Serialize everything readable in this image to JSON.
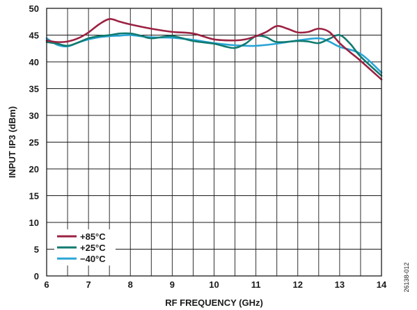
{
  "chart_data": {
    "type": "line",
    "title": "",
    "xlabel": "RF FREQUENCY (GHz)",
    "ylabel": "INPUT IP3 (dBm)",
    "xlim": [
      6,
      14
    ],
    "ylim": [
      0,
      50
    ],
    "xticks": [
      6,
      7,
      8,
      9,
      10,
      11,
      12,
      13,
      14
    ],
    "yticks": [
      0,
      5,
      10,
      15,
      20,
      25,
      30,
      35,
      40,
      45,
      50
    ],
    "x_grid_step": 0.5,
    "grid": true,
    "legend_position": "bottom-left",
    "series": [
      {
        "name": "+85°C",
        "color": "#9b2242",
        "x": [
          6.0,
          6.25,
          6.5,
          6.75,
          7.0,
          7.25,
          7.5,
          7.75,
          8.0,
          8.5,
          9.0,
          9.5,
          10.0,
          10.5,
          10.75,
          11.0,
          11.25,
          11.5,
          11.75,
          12.0,
          12.25,
          12.5,
          12.75,
          13.0,
          13.25,
          13.5,
          14.0
        ],
        "y": [
          44.0,
          43.7,
          43.8,
          44.4,
          45.5,
          47.0,
          48.0,
          47.5,
          47.0,
          46.2,
          45.6,
          45.3,
          44.2,
          44.0,
          44.2,
          44.8,
          45.6,
          46.7,
          46.2,
          45.5,
          45.6,
          46.2,
          45.6,
          43.5,
          41.8,
          40.2,
          36.7
        ]
      },
      {
        "name": "+25°C",
        "color": "#117a70",
        "x": [
          6.0,
          6.25,
          6.5,
          6.75,
          7.0,
          7.25,
          7.5,
          7.75,
          8.0,
          8.25,
          8.5,
          9.0,
          9.5,
          10.0,
          10.25,
          10.5,
          10.75,
          11.0,
          11.25,
          11.5,
          12.0,
          12.25,
          12.5,
          12.75,
          13.0,
          13.25,
          13.5,
          14.0
        ],
        "y": [
          43.7,
          43.4,
          43.0,
          43.6,
          44.4,
          44.8,
          45.0,
          45.3,
          45.3,
          44.9,
          44.4,
          44.8,
          43.9,
          43.4,
          42.9,
          42.6,
          43.4,
          44.8,
          44.6,
          43.7,
          43.9,
          43.8,
          43.5,
          44.3,
          45.0,
          43.4,
          41.0,
          37.4
        ]
      },
      {
        "name": "−40°C",
        "color": "#28a5d6",
        "x": [
          6.0,
          6.25,
          6.5,
          6.75,
          7.0,
          7.25,
          7.5,
          7.75,
          8.0,
          8.5,
          9.0,
          9.5,
          10.0,
          10.5,
          11.0,
          11.5,
          12.0,
          12.5,
          12.75,
          13.0,
          13.5,
          14.0
        ],
        "y": [
          44.4,
          43.2,
          42.9,
          43.6,
          44.2,
          44.6,
          44.8,
          44.9,
          45.0,
          44.6,
          44.5,
          44.1,
          43.5,
          43.1,
          43.0,
          43.4,
          44.0,
          44.4,
          43.8,
          42.8,
          41.5,
          38.0
        ]
      }
    ],
    "figure_id": "26138-012"
  }
}
